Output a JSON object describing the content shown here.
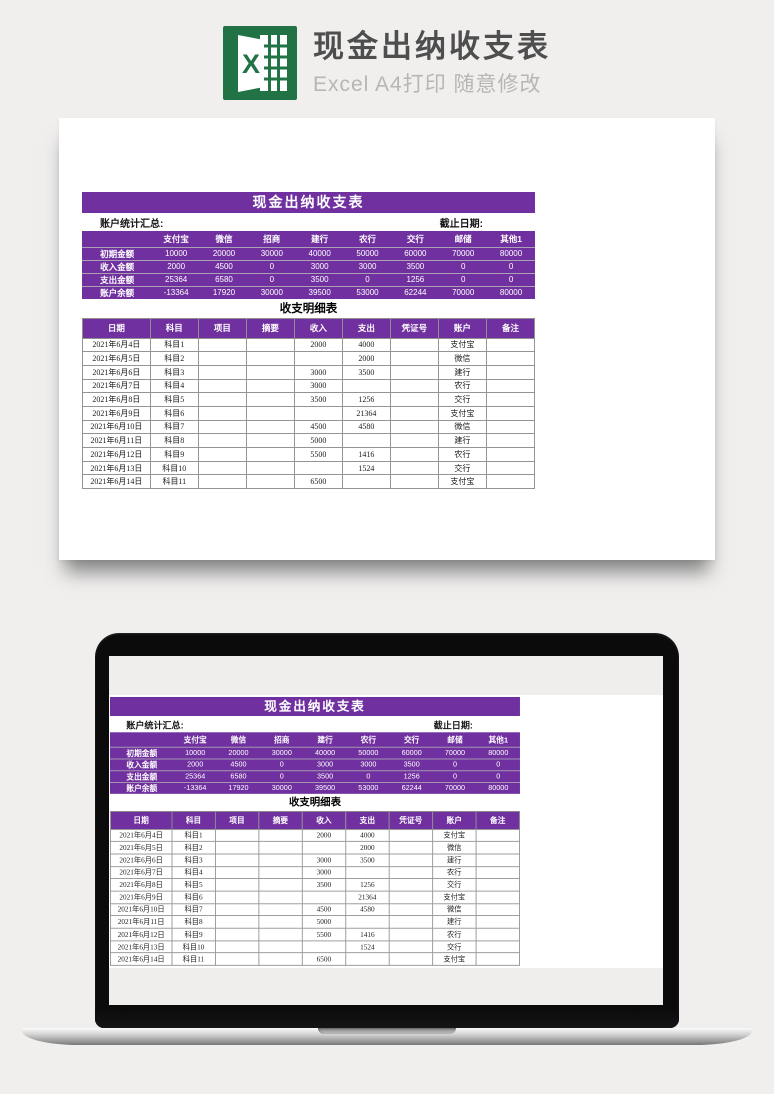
{
  "colors": {
    "accent_purple": "#7030A0",
    "excel_green": "#217346"
  },
  "header": {
    "title": "现金出纳收支表",
    "subtitle": "Excel A4打印 随意修改",
    "icon": "excel-icon"
  },
  "sheet": {
    "title": "现金出纳收支表",
    "summary_label": "账户统计汇总:",
    "deadline_label": "截止日期:",
    "summary": {
      "columns": [
        "",
        "支付宝",
        "微信",
        "招商",
        "建行",
        "农行",
        "交行",
        "邮储",
        "其他1"
      ],
      "rows": [
        {
          "label": "初期金额",
          "values": [
            "10000",
            "20000",
            "30000",
            "40000",
            "50000",
            "60000",
            "70000",
            "80000"
          ]
        },
        {
          "label": "收入金额",
          "values": [
            "2000",
            "4500",
            "0",
            "3000",
            "3000",
            "3500",
            "0",
            "0"
          ]
        },
        {
          "label": "支出金额",
          "values": [
            "25364",
            "6580",
            "0",
            "3500",
            "0",
            "1256",
            "0",
            "0"
          ]
        },
        {
          "label": "账户余额",
          "values": [
            "-13364",
            "17920",
            "30000",
            "39500",
            "53000",
            "62244",
            "70000",
            "80000"
          ]
        }
      ]
    },
    "detail": {
      "title": "收支明细表",
      "columns": [
        "日期",
        "科目",
        "项目",
        "摘要",
        "收入",
        "支出",
        "凭证号",
        "账户",
        "备注"
      ],
      "rows": [
        [
          "2021年6月4日",
          "科目1",
          "",
          "",
          "2000",
          "4000",
          "",
          "支付宝",
          ""
        ],
        [
          "2021年6月5日",
          "科目2",
          "",
          "",
          "",
          "2000",
          "",
          "微信",
          ""
        ],
        [
          "2021年6月6日",
          "科目3",
          "",
          "",
          "3000",
          "3500",
          "",
          "建行",
          ""
        ],
        [
          "2021年6月7日",
          "科目4",
          "",
          "",
          "3000",
          "",
          "",
          "农行",
          ""
        ],
        [
          "2021年6月8日",
          "科目5",
          "",
          "",
          "3500",
          "1256",
          "",
          "交行",
          ""
        ],
        [
          "2021年6月9日",
          "科目6",
          "",
          "",
          "",
          "21364",
          "",
          "支付宝",
          ""
        ],
        [
          "2021年6月10日",
          "科目7",
          "",
          "",
          "4500",
          "4580",
          "",
          "微信",
          ""
        ],
        [
          "2021年6月11日",
          "科目8",
          "",
          "",
          "5000",
          "",
          "",
          "建行",
          ""
        ],
        [
          "2021年6月12日",
          "科目9",
          "",
          "",
          "5500",
          "1416",
          "",
          "农行",
          ""
        ],
        [
          "2021年6月13日",
          "科目10",
          "",
          "",
          "",
          "1524",
          "",
          "交行",
          ""
        ],
        [
          "2021年6月14日",
          "科目11",
          "",
          "",
          "6500",
          "",
          "",
          "支付宝",
          ""
        ]
      ]
    }
  }
}
